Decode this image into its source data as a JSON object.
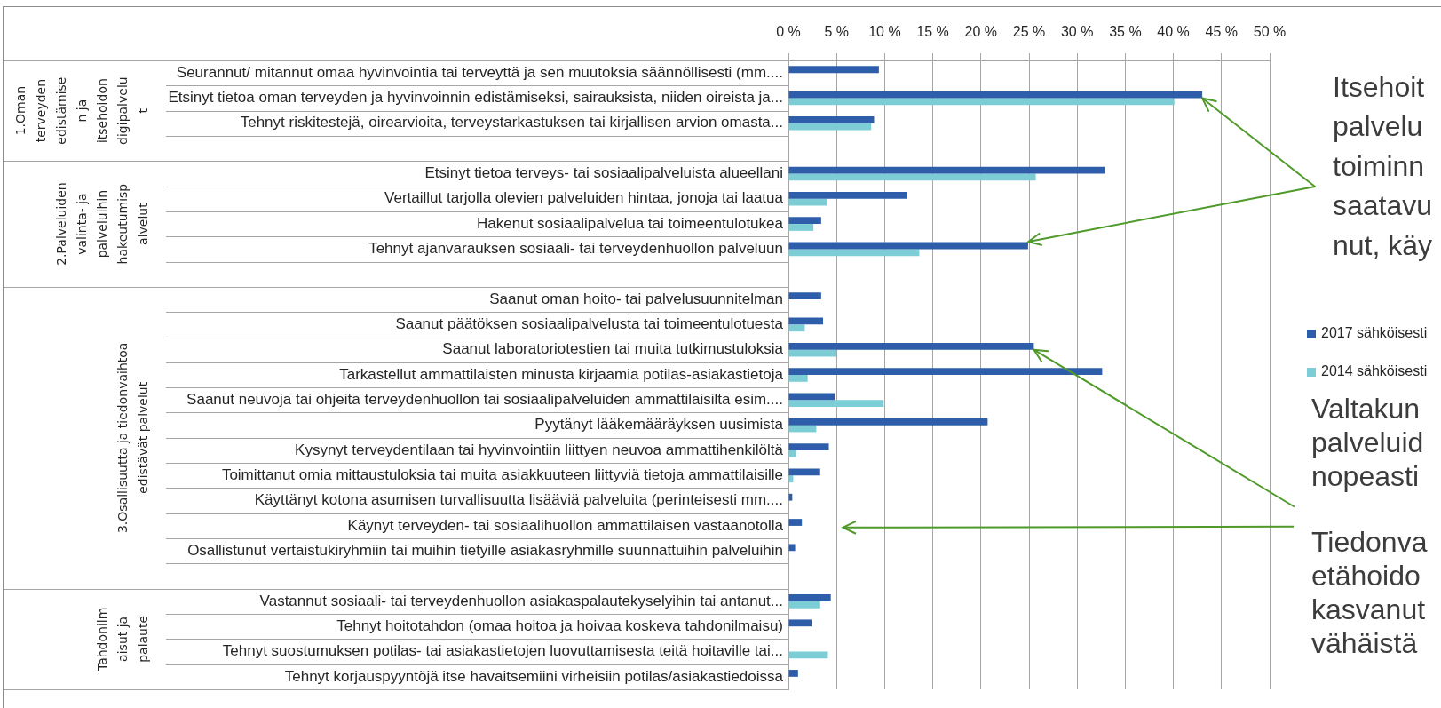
{
  "chart_data": {
    "type": "bar",
    "orientation": "horizontal",
    "categories": [
      "Seurannut/ mitannut omaa hyvinvointia tai terveyttä ja sen muutoksia säännöllisesti (mm....",
      "Etsinyt tietoa oman terveyden ja hyvinvoinnin edistämiseksi, sairauksista, niiden oireista ja...",
      "Tehnyt riskitestejä, oirearvioita, terveystarkastuksen tai kirjallisen arvion omasta...",
      null,
      "Etsinyt tietoa terveys- tai sosiaalipalveluista alueellani",
      "Vertaillut tarjolla olevien palveluiden hintaa, jonoja tai laatua",
      "Hakenut sosiaalipalvelua tai toimeentulotukea",
      "Tehnyt ajanvarauksen sosiaali- tai terveydenhuollon palveluun",
      null,
      "Saanut oman hoito- tai palvelusuunnitelman",
      "Saanut päätöksen sosiaalipalvelusta tai toimeentulotuesta",
      "Saanut laboratoriotestien tai muita tutkimustuloksia",
      "Tarkastellut ammattilaisten minusta kirjaamia potilas-asiakastietoja",
      "Saanut neuvoja tai ohjeita terveydenhuollon tai sosiaalipalveluiden ammattilaisilta esim....",
      "Pyytänyt lääkemääräyksen uusimista",
      "Kysynyt terveydentilaan tai hyvinvointiin liittyen neuvoa ammattihenkilöltä",
      "Toimittanut omia mittaustuloksia tai muita asiakkuuteen liittyviä tietoja ammattilaisille",
      "Käyttänyt kotona asumisen turvallisuutta lisääviä palveluita (perinteisesti mm....",
      "Käynyt terveyden- tai sosiaalihuollon ammattilaisen vastaanotolla",
      "Osallistunut vertaistukiryhmiin tai muihin tietyille asiakasryhmille suunnattuihin palveluihin",
      null,
      "Vastannut sosiaali- tai terveydenhuollon asiakaspalautekyselyihin tai antanut...",
      "Tehnyt hoitotahdon (omaa hoitoa ja hoivaa koskeva tahdonilmaisu)",
      "Tehnyt suostumuksen potilas- tai asiakastietojen luovuttamisesta teitä hoitaville tai...",
      "Tehnyt korjauspyyntöjä itse havaitsemiini virheisiin potilas/asiakastiedoissa"
    ],
    "series": [
      {
        "name": "2017 sähköisesti",
        "color": "#2e5ea9",
        "values": [
          9.4,
          43.0,
          8.9,
          null,
          32.9,
          12.3,
          3.4,
          24.9,
          null,
          3.4,
          3.6,
          25.5,
          32.6,
          4.8,
          20.7,
          4.2,
          3.3,
          0.4,
          1.4,
          0.7,
          null,
          4.4,
          2.4,
          null,
          1.0
        ]
      },
      {
        "name": "2014 sähköisesti",
        "color": "#7dcdd6",
        "values": [
          null,
          40.1,
          8.6,
          null,
          25.7,
          4.0,
          2.6,
          13.6,
          null,
          null,
          1.7,
          5.0,
          2.0,
          9.9,
          2.9,
          0.8,
          0.5,
          null,
          null,
          null,
          null,
          3.3,
          null,
          4.1,
          null
        ]
      }
    ],
    "xlim": [
      0,
      50
    ],
    "xticks": [
      {
        "value": 0,
        "label": "0 %"
      },
      {
        "value": 5,
        "label": "5 %"
      },
      {
        "value": 10,
        "label": "10 %"
      },
      {
        "value": 15,
        "label": "15 %"
      },
      {
        "value": 20,
        "label": "20 %"
      },
      {
        "value": 25,
        "label": "25 %"
      },
      {
        "value": 30,
        "label": "30 %"
      },
      {
        "value": 35,
        "label": "35 %"
      },
      {
        "value": 40,
        "label": "40 %"
      },
      {
        "value": 45,
        "label": "45 %"
      },
      {
        "value": 50,
        "label": "50 %"
      }
    ],
    "grid": "x",
    "legend": "right",
    "annotations": [
      "1.Oman\nterveyden\nedistämise\nn ja\nitsehoidon\ndigipalvelu\nt",
      "2.Palveluiden\nvalinta- ja\npalveluihin\nhakeutumisp\nalvelut",
      "3.Osallisuutta ja tiedonvaihtoa\nedistävät palvelut",
      "Tahdonilm\naisut ja\npalaute",
      {
        "text": "Itsehoit\npalvelu\ntoiminn\nsaatavu\nnut, käy",
        "x": 43.0,
        "y": "Etsinyt tietoa oman terveyden ja hyvinvoinnin edistämiseksi, sairauksista, niiden oireista ja..."
      },
      {
        "text": "Valtakun\npalveluid\nnopeasti",
        "x": 25.5,
        "y": "Saanut laboratoriotestien tai muita tutkimustuloksia"
      },
      "Tiedonva\netähoido\nkasvanut\nvähäistä"
    ]
  }
}
